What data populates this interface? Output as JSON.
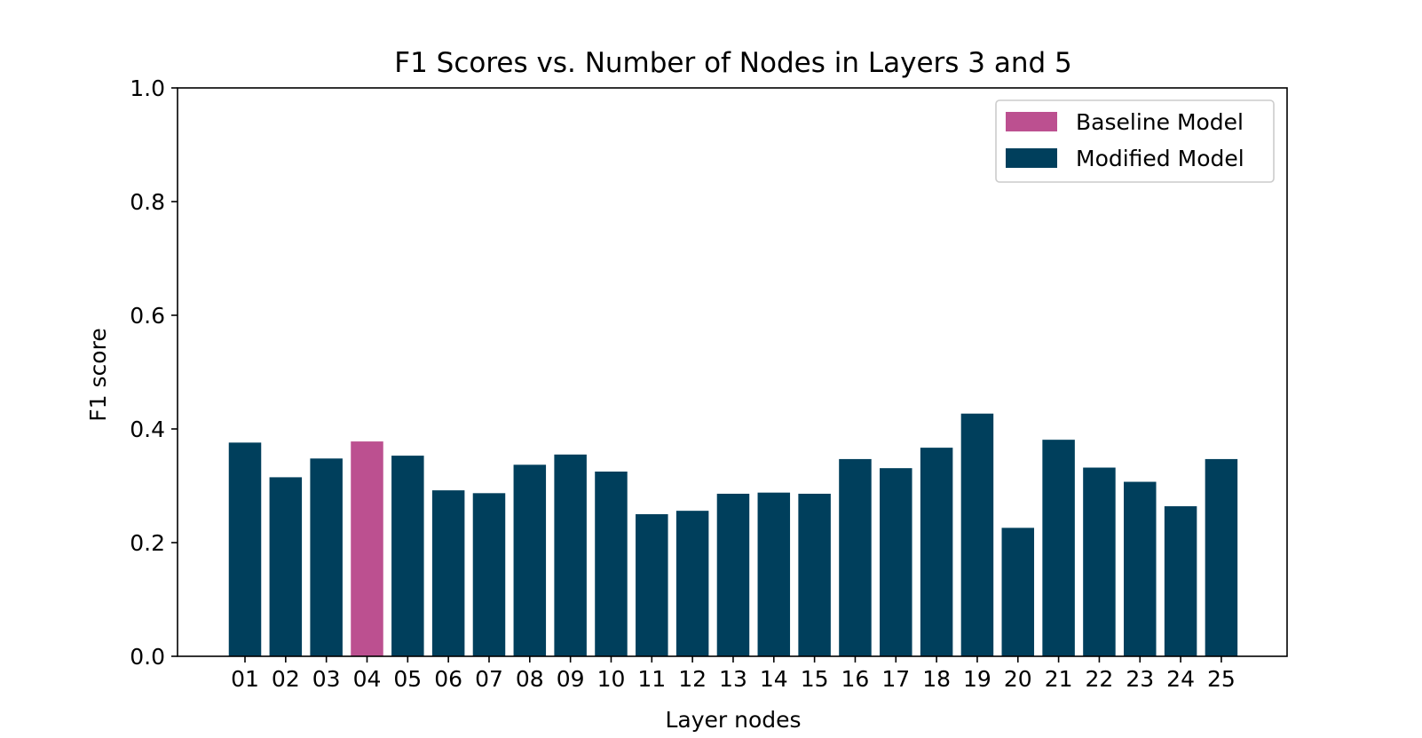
{
  "chart_data": {
    "type": "bar",
    "title": "F1 Scores vs. Number of Nodes in Layers 3 and 5",
    "xlabel": "Layer nodes",
    "ylabel": "F1 score",
    "ylim": [
      0,
      1.0
    ],
    "yticks": [
      "0.0",
      "0.2",
      "0.4",
      "0.6",
      "0.8",
      "1.0"
    ],
    "categories": [
      "01",
      "02",
      "03",
      "04",
      "05",
      "06",
      "07",
      "08",
      "09",
      "10",
      "11",
      "12",
      "13",
      "14",
      "15",
      "16",
      "17",
      "18",
      "19",
      "20",
      "21",
      "22",
      "23",
      "24",
      "25"
    ],
    "values": [
      0.376,
      0.315,
      0.348,
      0.378,
      0.353,
      0.292,
      0.287,
      0.337,
      0.355,
      0.325,
      0.25,
      0.256,
      0.286,
      0.288,
      0.286,
      0.347,
      0.331,
      0.367,
      0.427,
      0.226,
      0.381,
      0.332,
      0.307,
      0.264,
      0.347
    ],
    "baseline_index": 3,
    "colors": {
      "baseline": "#bc5090",
      "modified": "#003f5c"
    },
    "legend": {
      "placement": "top-right",
      "entries": [
        {
          "label": "Baseline Model",
          "color": "#bc5090"
        },
        {
          "label": "Modified Model",
          "color": "#003f5c"
        }
      ]
    },
    "grid": false
  }
}
